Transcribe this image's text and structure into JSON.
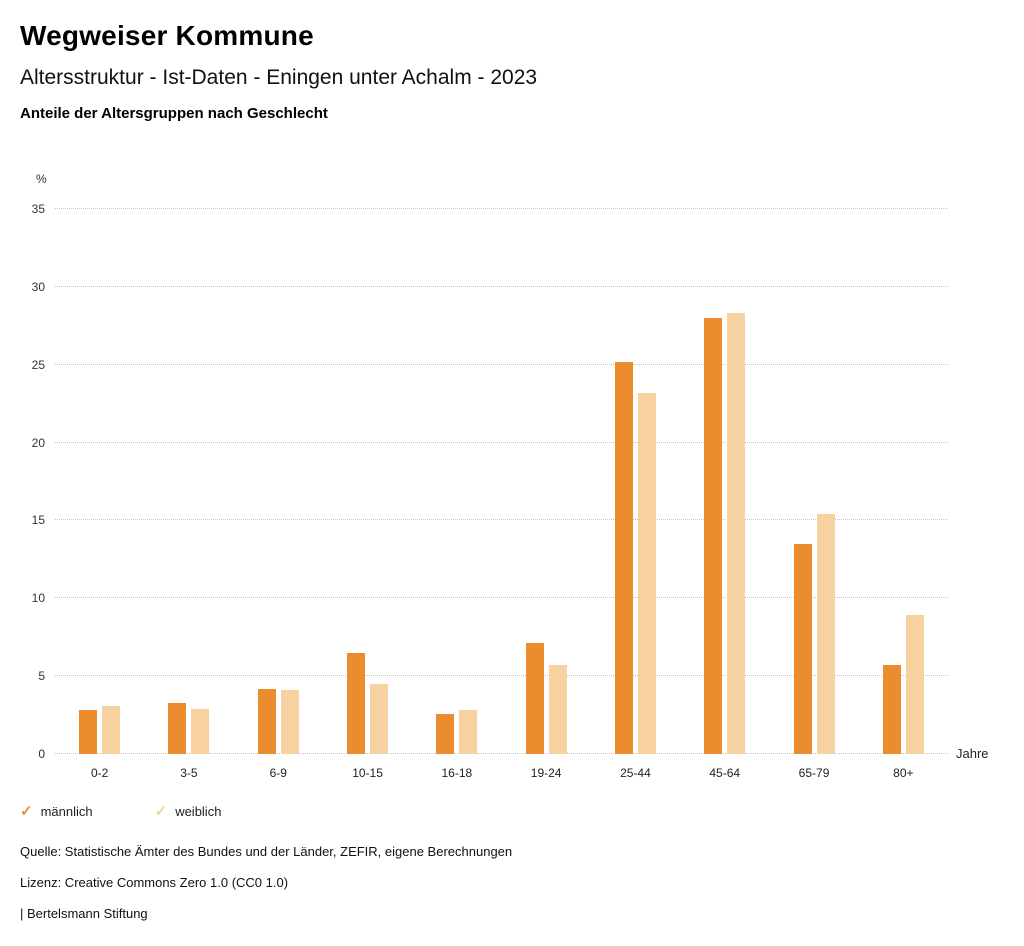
{
  "header": {
    "title": "Wegweiser Kommune",
    "subtitle": "Altersstruktur - Ist-Daten - Eningen unter Achalm - 2023"
  },
  "chart_data": {
    "type": "bar",
    "title": "Anteile der Altersgruppen nach Geschlecht",
    "categories": [
      "0-2",
      "3-5",
      "6-9",
      "10-15",
      "16-18",
      "19-24",
      "25-44",
      "45-64",
      "65-79",
      "80+"
    ],
    "series": [
      {
        "name": "männlich",
        "color": "#EB8C2F",
        "values": [
          2.8,
          3.3,
          4.2,
          6.5,
          2.6,
          7.1,
          25.2,
          28.0,
          13.5,
          5.7
        ]
      },
      {
        "name": "weiblich",
        "color": "#F7D2A0",
        "values": [
          3.1,
          2.9,
          4.1,
          4.5,
          2.8,
          5.7,
          23.2,
          28.3,
          15.4,
          8.9
        ]
      }
    ],
    "xlabel": "Jahre",
    "ylabel": "%",
    "ylim": [
      0,
      35
    ],
    "yticks": [
      0,
      5,
      10,
      15,
      20,
      25,
      30,
      35
    ],
    "grid": "horizontal-dotted",
    "legend_position": "bottom-left",
    "legend_marker": "check"
  },
  "footer": {
    "source": "Quelle: Statistische Ämter des Bundes und der Länder, ZEFIR, eigene Berechnungen",
    "license": "Lizenz: Creative Commons Zero 1.0 (CC0 1.0)",
    "attribution": "| Bertelsmann Stiftung"
  }
}
